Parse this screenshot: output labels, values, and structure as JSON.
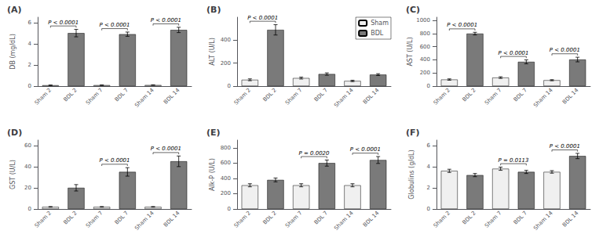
{
  "chart_data": [
    {
      "type": "bar",
      "title": "(A)",
      "ylabel": "DB (mg/dL)",
      "categories": [
        "Sham 2",
        "BDL 2",
        "Sham 7",
        "BDL 7",
        "Sham 14",
        "BDL 14"
      ],
      "series": [
        {
          "name": "Sham",
          "color": "#f0f0f0",
          "values": [
            0.08,
            null,
            0.09,
            null,
            0.1,
            null
          ],
          "errors": [
            0.02,
            null,
            0.02,
            null,
            0.02,
            null
          ]
        },
        {
          "name": "BDL",
          "color": "#7a7a7a",
          "values": [
            null,
            5.0,
            null,
            4.9,
            null,
            5.3
          ],
          "errors": [
            null,
            0.35,
            null,
            0.2,
            null,
            0.25
          ]
        }
      ],
      "ylim": [
        0,
        6.5
      ],
      "yticks": [
        0,
        2,
        4,
        6
      ],
      "grid": false,
      "annotations": [
        {
          "from": "Sham 2",
          "to": "BDL 2",
          "text": "P < 0.0001"
        },
        {
          "from": "Sham 7",
          "to": "BDL 7",
          "text": "P < 0.0001"
        },
        {
          "from": "Sham 14",
          "to": "BDL 14",
          "text": "P < 0.0001"
        }
      ]
    },
    {
      "type": "bar",
      "title": "(B)",
      "ylabel": "ALT (U/L)",
      "categories": [
        "Sham 2",
        "BDL 2",
        "Sham 7",
        "BDL 7",
        "Sham 14",
        "BDL 14"
      ],
      "series": [
        {
          "name": "Sham",
          "color": "#f0f0f0",
          "values": [
            55,
            null,
            70,
            null,
            45,
            null
          ],
          "errors": [
            8,
            null,
            8,
            null,
            6,
            null
          ]
        },
        {
          "name": "BDL",
          "color": "#7a7a7a",
          "values": [
            null,
            490,
            null,
            105,
            null,
            100
          ],
          "errors": [
            null,
            45,
            null,
            10,
            null,
            8
          ]
        }
      ],
      "ylim": [
        0,
        600
      ],
      "yticks": [
        0,
        200,
        400
      ],
      "grid": false,
      "legend": "upper right",
      "annotations": [
        {
          "from": "Sham 2",
          "to": "BDL 2",
          "text": "P < 0.0001"
        }
      ]
    },
    {
      "type": "bar",
      "title": "(C)",
      "ylabel": "AST (U/L)",
      "categories": [
        "Sham 2",
        "BDL 2",
        "Sham 7",
        "BDL 7",
        "Sham 14",
        "BDL 14"
      ],
      "series": [
        {
          "name": "Sham",
          "color": "#f0f0f0",
          "values": [
            100,
            null,
            130,
            null,
            90,
            null
          ],
          "errors": [
            10,
            null,
            12,
            null,
            8,
            null
          ]
        },
        {
          "name": "BDL",
          "color": "#7a7a7a",
          "values": [
            null,
            800,
            null,
            370,
            null,
            405
          ],
          "errors": [
            null,
            20,
            null,
            30,
            null,
            35
          ]
        }
      ],
      "ylim": [
        0,
        1050
      ],
      "yticks": [
        0,
        200,
        400,
        600,
        800,
        1000
      ],
      "grid": false,
      "annotations": [
        {
          "from": "Sham 2",
          "to": "BDL 2",
          "text": "P < 0.0001"
        },
        {
          "from": "Sham 7",
          "to": "BDL 7",
          "text": "P < 0.0001"
        },
        {
          "from": "Sham 14",
          "to": "BDL 14",
          "text": "P < 0.0001"
        }
      ]
    },
    {
      "type": "bar",
      "title": "(D)",
      "ylabel": "GST (U/L)",
      "categories": [
        "Sham 2",
        "BDL 2",
        "Sham 7",
        "BDL 7",
        "Sham 14",
        "BDL 14"
      ],
      "series": [
        {
          "name": "Sham",
          "color": "#f0f0f0",
          "values": [
            2,
            null,
            2,
            null,
            2,
            null
          ],
          "errors": [
            0.3,
            null,
            0.3,
            null,
            0.3,
            null
          ]
        },
        {
          "name": "BDL",
          "color": "#7a7a7a",
          "values": [
            null,
            20,
            null,
            35,
            null,
            45
          ],
          "errors": [
            null,
            3,
            null,
            4,
            null,
            5
          ]
        }
      ],
      "ylim": [
        0,
        65
      ],
      "yticks": [
        0,
        20,
        40,
        60
      ],
      "grid": false,
      "annotations": [
        {
          "from": "Sham 7",
          "to": "BDL 7",
          "text": "P < 0.0001"
        },
        {
          "from": "Sham 14",
          "to": "BDL 14",
          "text": "P < 0.0001"
        }
      ]
    },
    {
      "type": "bar",
      "title": "(E)",
      "ylabel": "Alk-P (U/L)",
      "categories": [
        "Sham 2",
        "BDL 2",
        "Sham 7",
        "BDL 7",
        "Sham 14",
        "BDL 14"
      ],
      "series": [
        {
          "name": "Sham",
          "color": "#f0f0f0",
          "values": [
            310,
            null,
            310,
            null,
            310,
            null
          ],
          "errors": [
            20,
            null,
            20,
            null,
            20,
            null
          ]
        },
        {
          "name": "BDL",
          "color": "#7a7a7a",
          "values": [
            null,
            380,
            null,
            600,
            null,
            640
          ],
          "errors": [
            null,
            25,
            null,
            40,
            null,
            45
          ]
        }
      ],
      "ylim": [
        0,
        900
      ],
      "yticks": [
        0,
        200,
        400,
        600,
        800
      ],
      "grid": false,
      "annotations": [
        {
          "from": "Sham 7",
          "to": "BDL 7",
          "text": "P = 0.0020"
        },
        {
          "from": "Sham 14",
          "to": "BDL 14",
          "text": "P < 0.0001"
        }
      ]
    },
    {
      "type": "bar",
      "title": "(F)",
      "ylabel": "Globulins (g/dL)",
      "categories": [
        "Sham 2",
        "BDL 2",
        "Sham 7",
        "BDL 7",
        "Sham 14",
        "BDL 14"
      ],
      "series": [
        {
          "name": "Sham",
          "color": "#f0f0f0",
          "values": [
            3.6,
            null,
            3.8,
            null,
            3.5,
            null
          ],
          "errors": [
            0.15,
            null,
            0.15,
            null,
            0.12,
            null
          ]
        },
        {
          "name": "BDL",
          "color": "#7a7a7a",
          "values": [
            null,
            3.2,
            null,
            3.5,
            null,
            5.0
          ],
          "errors": [
            null,
            0.15,
            null,
            0.15,
            null,
            0.25
          ]
        }
      ],
      "ylim": [
        0,
        6.5
      ],
      "yticks": [
        0,
        2,
        4,
        6
      ],
      "grid": false,
      "annotations": [
        {
          "from": "Sham 7",
          "to": "BDL 7",
          "text": "P = 0.0113"
        },
        {
          "from": "Sham 14",
          "to": "BDL 14",
          "text": "P < 0.0001"
        }
      ]
    }
  ]
}
